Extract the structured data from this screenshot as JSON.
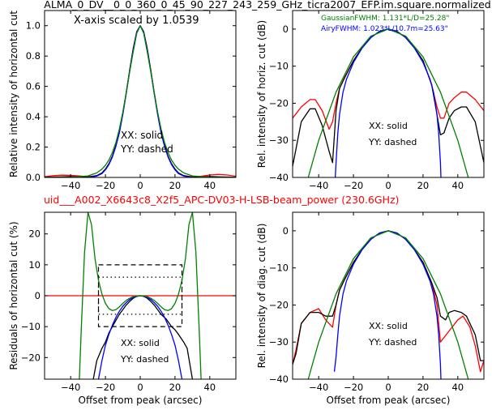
{
  "figure": {
    "title": "ALMA_0_DV__0_0_360_0_45_90_227_243_259_GHz_ticra2007_EFP.im.square.normalized",
    "subtitle": "uid___A002_X6643c8_X2f5_APC-DV03-H-LSB-beam_power (230.6GHz)",
    "subtitle_color": "#ff0000"
  },
  "chart_data": [
    {
      "id": "p1",
      "type": "line",
      "title": "",
      "xlabel": "",
      "ylabel": "Relative intensity of horizontal cut",
      "xlim": [
        -55,
        55
      ],
      "ylim": [
        0,
        1.1
      ],
      "xticks": [
        -40,
        -20,
        0,
        20,
        40
      ],
      "yticks": [
        0.0,
        0.2,
        0.4,
        0.6,
        0.8,
        1.0
      ],
      "ytick_labels": [
        "0.0",
        "0.2",
        "0.4",
        "0.6",
        "0.8",
        "1.0"
      ],
      "annotations": [
        "X-axis scaled by 1.0539",
        "XX: solid",
        "YY: dashed"
      ],
      "series": [
        {
          "color": "#ff0000",
          "x": [
            -55,
            -50,
            -45,
            -40,
            -35,
            -30,
            -25,
            -22,
            -20,
            -18,
            -16,
            -14,
            -12,
            -10,
            -8,
            -6,
            -4,
            -2,
            0,
            2,
            4,
            6,
            8,
            10,
            12,
            14,
            16,
            18,
            20,
            22,
            25,
            30,
            35,
            40,
            45,
            50,
            55
          ],
          "y": [
            0.005,
            0.012,
            0.015,
            0.014,
            0.01,
            0.005,
            0.012,
            0.03,
            0.055,
            0.09,
            0.14,
            0.21,
            0.3,
            0.42,
            0.56,
            0.71,
            0.85,
            0.96,
            1.0,
            0.96,
            0.85,
            0.71,
            0.56,
            0.42,
            0.3,
            0.21,
            0.14,
            0.09,
            0.055,
            0.03,
            0.012,
            0.004,
            0.008,
            0.016,
            0.02,
            0.016,
            0.008
          ]
        },
        {
          "color": "#000000",
          "x": [
            -55,
            -45,
            -40,
            -35,
            -30,
            -25,
            -22,
            -20,
            -18,
            -16,
            -14,
            -12,
            -10,
            -8,
            -6,
            -4,
            -2,
            0,
            2,
            4,
            6,
            8,
            10,
            12,
            14,
            16,
            18,
            20,
            22,
            25,
            30,
            35,
            40,
            45,
            55
          ],
          "y": [
            0.001,
            0.004,
            0.006,
            0.004,
            0.002,
            0.012,
            0.03,
            0.055,
            0.09,
            0.14,
            0.21,
            0.3,
            0.42,
            0.56,
            0.71,
            0.85,
            0.96,
            1.0,
            0.96,
            0.85,
            0.71,
            0.56,
            0.42,
            0.3,
            0.21,
            0.14,
            0.09,
            0.055,
            0.03,
            0.012,
            0.002,
            0.004,
            0.006,
            0.004,
            0.001
          ]
        },
        {
          "color": "#0000ff",
          "x": [
            -30,
            -25,
            -22,
            -20,
            -18,
            -16,
            -14,
            -12,
            -10,
            -8,
            -6,
            -4,
            -2,
            0,
            2,
            4,
            6,
            8,
            10,
            12,
            14,
            16,
            18,
            20,
            22,
            25,
            30
          ],
          "y": [
            0.0,
            0.009,
            0.025,
            0.05,
            0.085,
            0.135,
            0.205,
            0.295,
            0.415,
            0.555,
            0.705,
            0.845,
            0.958,
            1.0,
            0.958,
            0.845,
            0.705,
            0.555,
            0.415,
            0.295,
            0.205,
            0.135,
            0.085,
            0.05,
            0.025,
            0.009,
            0.0
          ]
        },
        {
          "color": "#008000",
          "x": [
            -55,
            -40,
            -30,
            -25,
            -22,
            -20,
            -18,
            -16,
            -14,
            -12,
            -10,
            -8,
            -6,
            -4,
            -2,
            0,
            2,
            4,
            6,
            8,
            10,
            12,
            14,
            16,
            18,
            20,
            22,
            25,
            30,
            40,
            55
          ],
          "y": [
            0.0,
            0.001,
            0.01,
            0.03,
            0.055,
            0.08,
            0.115,
            0.165,
            0.23,
            0.32,
            0.43,
            0.56,
            0.7,
            0.83,
            0.95,
            1.0,
            0.95,
            0.83,
            0.7,
            0.56,
            0.43,
            0.32,
            0.23,
            0.165,
            0.115,
            0.08,
            0.055,
            0.03,
            0.01,
            0.001,
            0.0
          ]
        }
      ]
    },
    {
      "id": "p2",
      "type": "line",
      "title": "",
      "xlabel": "",
      "ylabel": "Rel. intensity of horiz. cut (dB)",
      "xlim": [
        -55,
        55
      ],
      "ylim": [
        -40,
        5
      ],
      "xticks": [
        -40,
        -20,
        0,
        20,
        40
      ],
      "yticks": [
        0,
        -10,
        -20,
        -30,
        -40
      ],
      "annotations": [
        "XX: solid",
        "YY: dashed"
      ],
      "legend": [
        {
          "text": "GaussianFWHM: 1.131*L/D=25.28\"",
          "color": "#008000"
        },
        {
          "text": "AiryFWHM: 1.023*L/10.7m=25.63\"",
          "color": "#0000ff"
        }
      ],
      "series": [
        {
          "color": "#ff0000",
          "x": [
            -55,
            -50,
            -45,
            -42,
            -38,
            -34,
            -32,
            -30,
            -28,
            -25,
            -20,
            -15,
            -10,
            -5,
            0,
            5,
            10,
            15,
            20,
            25,
            28,
            30,
            32,
            35,
            38,
            42,
            45,
            50,
            55
          ],
          "y": [
            -24,
            -21,
            -19,
            -19,
            -22,
            -27,
            -25,
            -20,
            -16,
            -13,
            -8.5,
            -5,
            -2.3,
            -0.6,
            0,
            -0.6,
            -2.3,
            -5,
            -8.5,
            -15,
            -21,
            -24,
            -24,
            -20,
            -18.5,
            -17,
            -17,
            -19,
            -22
          ]
        },
        {
          "color": "#000000",
          "x": [
            -55,
            -50,
            -45,
            -42,
            -38,
            -34,
            -32,
            -30,
            -28,
            -25,
            -20,
            -15,
            -10,
            -5,
            0,
            5,
            10,
            15,
            20,
            25,
            28,
            30,
            32,
            35,
            38,
            42,
            45,
            50,
            55
          ],
          "y": [
            -37,
            -25,
            -21.5,
            -21.5,
            -26,
            -33,
            -36,
            -22,
            -16,
            -13,
            -8.5,
            -5,
            -2.3,
            -0.6,
            0,
            -0.6,
            -2.3,
            -5,
            -8.5,
            -15,
            -23,
            -28.5,
            -28,
            -24,
            -22,
            -21,
            -21,
            -25,
            -36
          ]
        },
        {
          "color": "#0000ff",
          "x": [
            -30.5,
            -30,
            -29,
            -28,
            -26,
            -24,
            -20,
            -15,
            -10,
            -5,
            0,
            5,
            10,
            15,
            20,
            24,
            26,
            28,
            29,
            30,
            30.3
          ],
          "y": [
            -40,
            -36,
            -28,
            -23,
            -17,
            -13.5,
            -9,
            -5.1,
            -2.3,
            -0.6,
            0,
            -0.6,
            -2.3,
            -5.1,
            -9,
            -13.5,
            -17,
            -23,
            -28,
            -36,
            -40
          ]
        },
        {
          "color": "#008000",
          "x": [
            -46,
            -40,
            -30,
            -20,
            -10,
            0,
            10,
            20,
            30,
            40,
            46
          ],
          "y": [
            -40,
            -30,
            -17,
            -7.5,
            -1.9,
            0,
            -1.9,
            -7.5,
            -17,
            -30,
            -40
          ]
        }
      ]
    },
    {
      "id": "p3",
      "type": "line",
      "title": "",
      "xlabel": "Offset from peak (arcsec)",
      "ylabel": "Residuals of horizontal cut (%)",
      "xlim": [
        -55,
        55
      ],
      "ylim": [
        -27,
        27
      ],
      "xticks": [
        -40,
        -20,
        0,
        20,
        40
      ],
      "yticks": [
        20,
        10,
        0,
        -10,
        -20
      ],
      "annotations": [
        "XX: solid",
        "YY: dashed"
      ],
      "hline": {
        "y": 0,
        "color": "#ff0000"
      },
      "dashed_box": {
        "x": [
          -24,
          24
        ],
        "y": [
          -10,
          10
        ]
      },
      "dotted_box": {
        "x": [
          -24,
          24
        ],
        "y": [
          -6,
          6
        ]
      },
      "series": [
        {
          "color": "#000000",
          "x": [
            -27,
            -25,
            -22,
            -20,
            -18,
            -15,
            -12,
            -10,
            -8,
            -6,
            -4,
            -2,
            0,
            2,
            4,
            6,
            8,
            10,
            12,
            15,
            18,
            20,
            22,
            25,
            27,
            30
          ],
          "y": [
            -27,
            -21,
            -17,
            -15,
            -12,
            -9,
            -6,
            -4.5,
            -3,
            -1.8,
            -0.8,
            -0.2,
            0,
            -0.2,
            -0.8,
            -1.8,
            -3,
            -4.5,
            -6,
            -7.6,
            -10,
            -11,
            -12.5,
            -15,
            -17,
            -27
          ]
        },
        {
          "color": "#0000ff",
          "x": [
            -24,
            -22,
            -20,
            -18,
            -16,
            -14,
            -12,
            -10,
            -8,
            -6,
            -4,
            -2,
            0,
            2,
            4,
            6,
            8,
            10,
            12,
            14,
            16,
            18,
            20,
            22,
            24
          ],
          "y": [
            -27,
            -21,
            -16,
            -12.5,
            -9.5,
            -7,
            -5,
            -3.4,
            -2.2,
            -1.2,
            -0.6,
            -0.15,
            0,
            -0.15,
            -0.6,
            -1.2,
            -2.2,
            -3.4,
            -5,
            -7,
            -9.5,
            -12.5,
            -16,
            -21,
            -27
          ]
        },
        {
          "color": "#008000",
          "x": [
            -35,
            -34,
            -32,
            -30,
            -28,
            -26,
            -24,
            -22,
            -20,
            -18,
            -16,
            -14,
            -12,
            -10,
            -8,
            -6,
            -4,
            -2,
            0,
            2,
            4,
            6,
            8,
            10,
            12,
            14,
            16,
            18,
            20,
            22,
            24,
            26,
            28,
            30,
            32,
            34,
            35
          ],
          "y": [
            -27,
            -12,
            14,
            27,
            23,
            12,
            5,
            0.5,
            -2.5,
            -4.2,
            -4.8,
            -4.5,
            -3.6,
            -2.5,
            -1.5,
            -0.8,
            -0.3,
            -0.1,
            0,
            -0.1,
            -0.3,
            -0.8,
            -1.5,
            -2.5,
            -3.6,
            -4.5,
            -4.8,
            -4.2,
            -2.5,
            0.5,
            5,
            12,
            23,
            27,
            14,
            -12,
            -27
          ]
        }
      ]
    },
    {
      "id": "p4",
      "type": "line",
      "title": "",
      "xlabel": "Offset from peak (arcsec)",
      "ylabel": "Rel. intensity of diag. cut (dB)",
      "xlim": [
        -55,
        55
      ],
      "ylim": [
        -40,
        5
      ],
      "xticks": [
        -40,
        -20,
        0,
        20,
        40
      ],
      "yticks": [
        0,
        -10,
        -20,
        -30,
        -40
      ],
      "annotations": [
        "XX: solid",
        "YY: dashed"
      ],
      "series": [
        {
          "color": "#ff0000",
          "x": [
            -55,
            -53,
            -50,
            -45,
            -40,
            -36,
            -32,
            -30,
            -28,
            -25,
            -20,
            -15,
            -10,
            -5,
            0,
            5,
            10,
            15,
            20,
            25,
            28,
            30,
            35,
            40,
            43,
            47,
            50,
            53,
            55
          ],
          "y": [
            -36,
            -32,
            -25,
            -22,
            -21,
            -24,
            -26,
            -20,
            -16,
            -13,
            -8.5,
            -5,
            -2.3,
            -0.6,
            0,
            -0.6,
            -2.3,
            -5,
            -8.5,
            -14,
            -20,
            -30,
            -27,
            -24,
            -23,
            -26,
            -31,
            -38,
            -35
          ]
        },
        {
          "color": "#000000",
          "x": [
            -55,
            -53,
            -50,
            -45,
            -40,
            -36,
            -32,
            -30,
            -28,
            -25,
            -20,
            -15,
            -10,
            -5,
            0,
            5,
            10,
            15,
            20,
            25,
            28,
            30,
            33,
            35,
            38,
            42,
            45,
            50,
            53,
            55
          ],
          "y": [
            -36,
            -33,
            -25,
            -22,
            -22,
            -23,
            -23,
            -20,
            -16,
            -13,
            -8.5,
            -5,
            -2.3,
            -0.6,
            0,
            -0.6,
            -2.3,
            -5,
            -8.5,
            -14,
            -18,
            -23,
            -24,
            -22,
            -21.5,
            -22,
            -23,
            -28,
            -35,
            -35
          ]
        },
        {
          "color": "#0000ff",
          "x": [
            -31,
            -30,
            -29,
            -28,
            -26,
            -24,
            -20,
            -15,
            -10,
            -5,
            0,
            5,
            10,
            15,
            20,
            24,
            26,
            28,
            29,
            30,
            30.3
          ],
          "y": [
            -38,
            -34,
            -28,
            -23,
            -17,
            -13.5,
            -9,
            -5.1,
            -2.3,
            -0.6,
            0,
            -0.6,
            -2.3,
            -5.1,
            -9,
            -13.5,
            -17,
            -23,
            -28,
            -36,
            -40
          ]
        },
        {
          "color": "#008000",
          "x": [
            -46,
            -40,
            -30,
            -20,
            -10,
            0,
            10,
            20,
            30,
            40,
            46
          ],
          "y": [
            -40,
            -30,
            -17,
            -7.5,
            -1.9,
            0,
            -1.9,
            -7.5,
            -17,
            -30,
            -40
          ]
        }
      ]
    }
  ]
}
